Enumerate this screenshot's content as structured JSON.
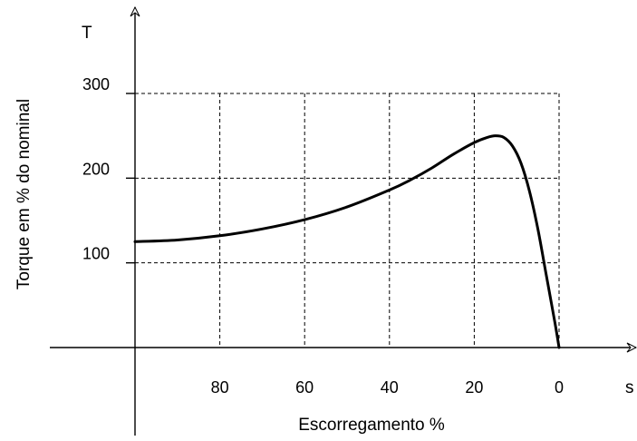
{
  "chart_data": {
    "type": "line",
    "ylabel": "Torque em % do nominal",
    "y_axis_symbol": "T",
    "xlabel": "Escorregamento %",
    "x_axis_symbol": "s",
    "x_reversed": true,
    "xlim": [
      100,
      0
    ],
    "ylim": [
      0,
      300
    ],
    "grid": true,
    "x_ticks": [
      80,
      60,
      40,
      20,
      0
    ],
    "x_tick_labels": [
      "80",
      "60",
      "40",
      "20",
      "0"
    ],
    "y_ticks": [
      100,
      200,
      300
    ],
    "y_tick_labels": [
      "100",
      "200",
      "300"
    ],
    "series": [
      {
        "x": [
          100,
          90,
          80,
          70,
          60,
          50,
          40,
          35,
          30,
          25,
          20,
          17,
          15,
          13,
          11,
          9,
          7,
          5,
          3,
          1,
          0
        ],
        "y": [
          125,
          127,
          132,
          140,
          151,
          166,
          186,
          198,
          212,
          228,
          242,
          248,
          250,
          248,
          238,
          218,
          185,
          140,
          85,
          30,
          0
        ]
      }
    ]
  }
}
